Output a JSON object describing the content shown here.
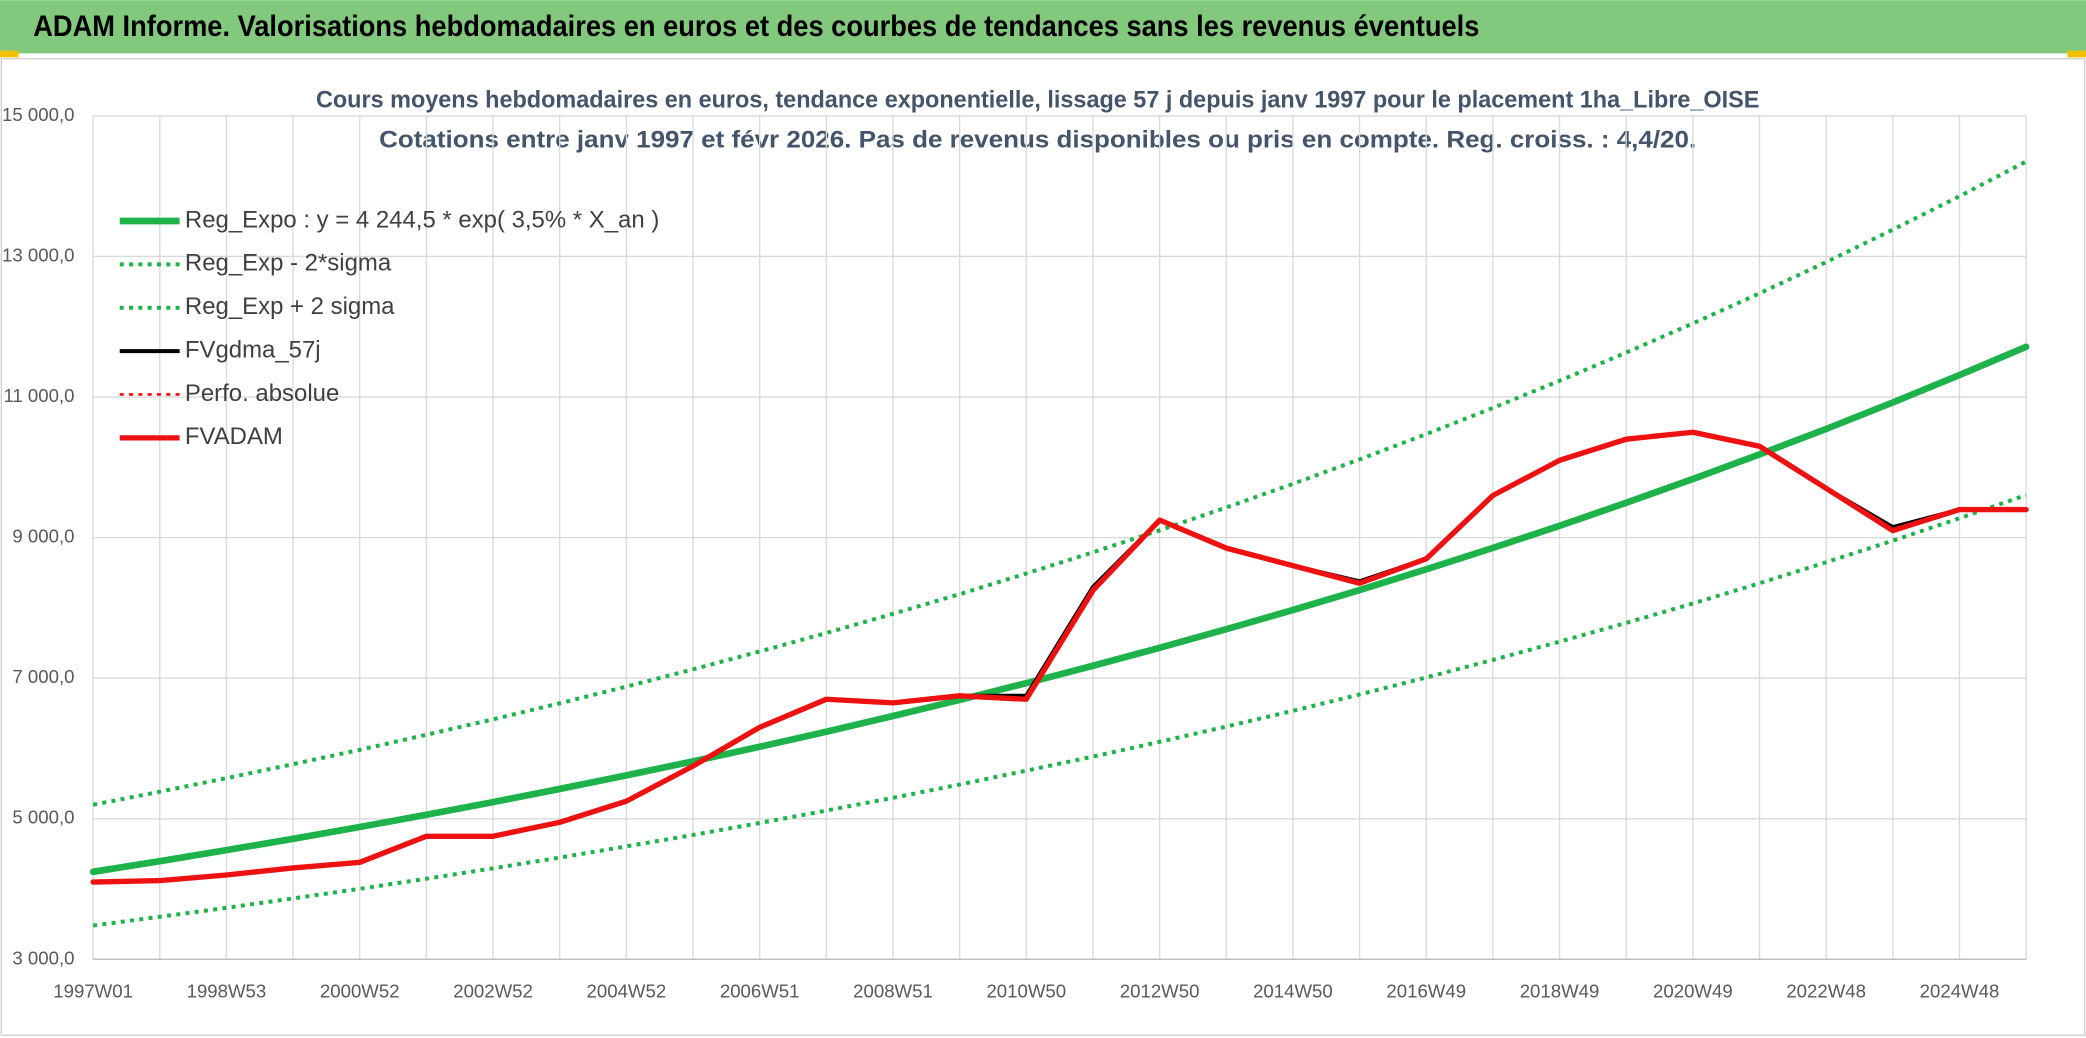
{
  "header": {
    "title": "ADAM Informe. Valorisations hebdomadaires en euros et des courbes de tendances sans les revenus éventuels"
  },
  "chart_data": {
    "type": "line",
    "title": "Cours moyens hebdomadaires en euros, tendance exponentielle, lissage 57 j depuis janv 1997 pour le placement 1ha_Libre_OISE",
    "subtitle": "Cotations entre janv 1997 et févr 2026. Pas de revenus disponibles ou pris en compte. Reg. croiss. : 4,4/20.",
    "categories": [
      "1997W01",
      null,
      "1998W53",
      null,
      "2000W52",
      null,
      "2002W52",
      null,
      "2004W52",
      null,
      "2006W51",
      null,
      "2008W51",
      null,
      "2010W50",
      null,
      "2012W50",
      null,
      "2014W50",
      null,
      "2016W49",
      null,
      "2018W49",
      null,
      "2020W49",
      null,
      "2022W48",
      null,
      "2024W48",
      null
    ],
    "ylim": [
      3000,
      15000
    ],
    "yticks": [
      {
        "value": 3000,
        "label": "3 000,0"
      },
      {
        "value": 5000,
        "label": "5 000,0"
      },
      {
        "value": 7000,
        "label": "7 000,0"
      },
      {
        "value": 9000,
        "label": "9 000,0"
      },
      {
        "value": 11000,
        "label": "11 000,0"
      },
      {
        "value": 13000,
        "label": "13 000,0"
      },
      {
        "value": 15000,
        "label": "15 000,0"
      }
    ],
    "grid": true,
    "legend": "upper-left",
    "series": [
      {
        "name": "Reg_Expo : y = 4 244,5 * exp( 3,5% *  X_an )",
        "color": "#1db34a",
        "style": "solid",
        "width": 5,
        "values": [
          4245,
          4396,
          4553,
          4715,
          4883,
          5057,
          5237,
          5424,
          5617,
          5817,
          6024,
          6239,
          6461,
          6691,
          6930,
          7177,
          7432,
          7697,
          7971,
          8255,
          8549,
          8854,
          9169,
          9496,
          9834,
          10184,
          10547,
          10923,
          11312,
          11715
        ]
      },
      {
        "name": "Reg_Exp - 2*sigma",
        "color": "#1db34a",
        "style": "dotted",
        "width": 3,
        "values": [
          3481,
          3605,
          3733,
          3866,
          4004,
          4147,
          4294,
          4448,
          4606,
          4770,
          4940,
          5116,
          5298,
          5487,
          5683,
          5885,
          6094,
          6312,
          6536,
          6769,
          7010,
          7260,
          7519,
          7787,
          8064,
          8351,
          8649,
          8957,
          9276,
          9606
        ]
      },
      {
        "name": "Reg_Exp + 2 sigma",
        "color": "#1db34a",
        "style": "dotted",
        "width": 3,
        "values": [
          5200,
          5385,
          5577,
          5776,
          5982,
          6195,
          6415,
          6644,
          6881,
          7126,
          7379,
          7643,
          7915,
          8196,
          8489,
          8792,
          9104,
          9429,
          9764,
          10112,
          10473,
          10846,
          11232,
          11633,
          12047,
          12475,
          12920,
          13381,
          13857,
          14351
        ]
      },
      {
        "name": "FVgdma_57j",
        "color": "#000000",
        "style": "solid",
        "width": 3,
        "values": [
          4100,
          4120,
          4200,
          4300,
          4390,
          4750,
          4750,
          4950,
          5250,
          5750,
          6300,
          6700,
          6650,
          6750,
          6750,
          8300,
          9250,
          8850,
          8600,
          8380,
          8700,
          9600,
          10100,
          10400,
          10500,
          10300,
          9700,
          9150,
          9400,
          9400
        ]
      },
      {
        "name": "Perfo. absolue",
        "color": "#ff0000",
        "style": "dotted",
        "width": 2,
        "values": [
          null,
          null,
          null,
          null,
          null,
          null,
          null,
          null,
          null,
          null,
          null,
          null,
          null,
          null,
          null,
          null,
          null,
          null,
          null,
          null,
          null,
          null,
          null,
          null,
          null,
          null,
          null,
          null,
          null,
          null
        ]
      },
      {
        "name": "FVADAM",
        "color": "#ee1111",
        "style": "solid",
        "width": 4,
        "values": [
          4100,
          4120,
          4200,
          4300,
          4380,
          4750,
          4750,
          4950,
          5250,
          5750,
          6300,
          6700,
          6650,
          6750,
          6700,
          8250,
          9250,
          8850,
          8600,
          8350,
          8700,
          9600,
          10100,
          10400,
          10500,
          10300,
          9700,
          9100,
          9400,
          9400
        ]
      }
    ]
  }
}
